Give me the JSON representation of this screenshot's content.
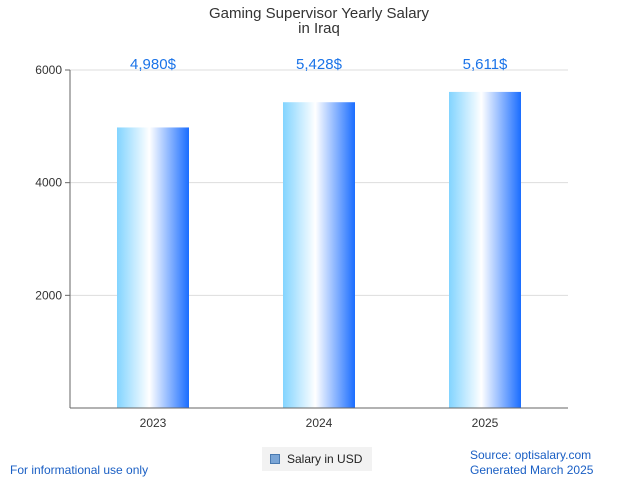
{
  "chart_data": {
    "type": "bar",
    "title": "Gaming Supervisor Yearly Salary",
    "subtitle": "in Iraq",
    "categories": [
      "2023",
      "2024",
      "2025"
    ],
    "values": [
      4980,
      5428,
      5611
    ],
    "value_labels": [
      "4,980$",
      "5,428$",
      "5,611$"
    ],
    "series": [
      {
        "name": "Salary in USD",
        "values": [
          4980,
          5428,
          5611
        ]
      }
    ],
    "ylim": [
      0,
      6000
    ],
    "yticks": [
      2000,
      4000,
      6000
    ],
    "grid": true,
    "legend_position": "bottom-center",
    "bar_colors": {
      "edge": "#82d4ff",
      "center": "#ffffff",
      "right": "#1a6dff"
    }
  },
  "legend": {
    "label": "Salary in USD",
    "color": "#7aa5d6"
  },
  "footer": {
    "disclaimer": "For informational use only",
    "source": "Source: optisalary.com",
    "generated": "Generated March 2025"
  }
}
